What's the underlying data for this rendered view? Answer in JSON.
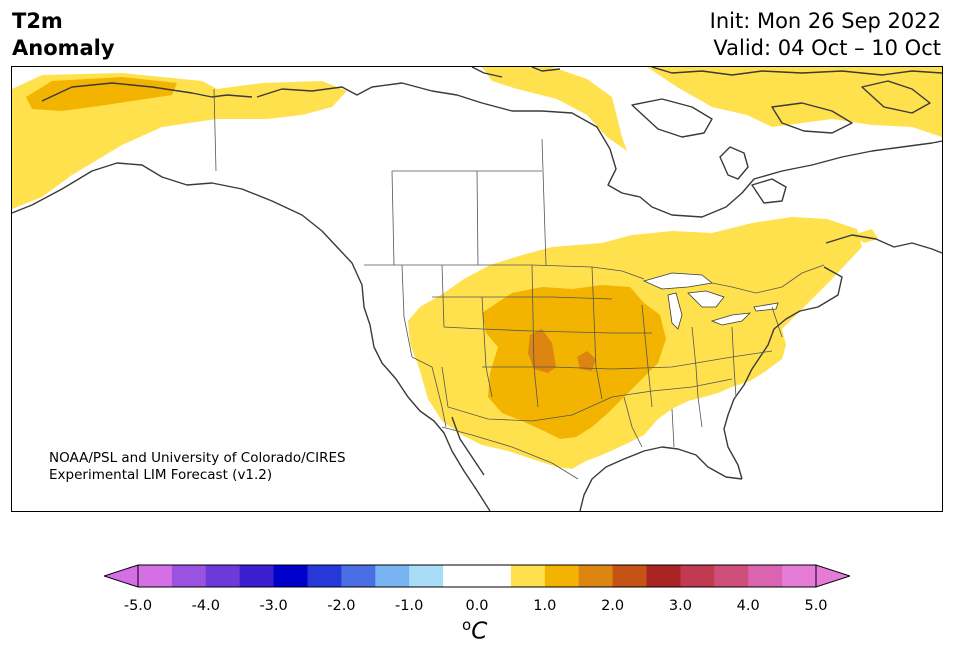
{
  "title": {
    "left_line1": "T2m",
    "left_line2": "Anomaly",
    "init": "Init: Mon 26 Sep 2022",
    "valid": "Valid: 04 Oct – 10 Oct"
  },
  "credit": {
    "line1": "NOAA/PSL and University of Colorado/CIRES",
    "line2": "Experimental LIM Forecast (v1.2)"
  },
  "colorbar": {
    "ticks": [
      "-5.0",
      "-4.0",
      "-3.0",
      "-2.0",
      "-1.0",
      "0.0",
      "1.0",
      "2.0",
      "3.0",
      "4.0",
      "5.0"
    ],
    "unit_sup": "o",
    "unit": "C",
    "colors": [
      "#d56fe6",
      "#9a52e0",
      "#6b3ad9",
      "#3a1fd0",
      "#0000cc",
      "#2638d8",
      "#4a6ee4",
      "#78b4f2",
      "#aadcf8",
      "#ffffff",
      "#ffffff",
      "#ffe14e",
      "#f2b400",
      "#dd8511",
      "#c55216",
      "#aa2424",
      "#c03a52",
      "#ce4f7c",
      "#da64b0",
      "#e57dd6"
    ],
    "under_color": "#d56fe6",
    "over_color": "#e57dd6"
  },
  "map": {
    "region": "North America",
    "land_color": "#ffffff",
    "coast_color": "#3a3a3a",
    "anomaly_colors": {
      "0.5-1.0": "#ffe14e",
      "1.0-1.5": "#f2b400",
      "1.5-2.0": "#dd8511"
    }
  }
}
